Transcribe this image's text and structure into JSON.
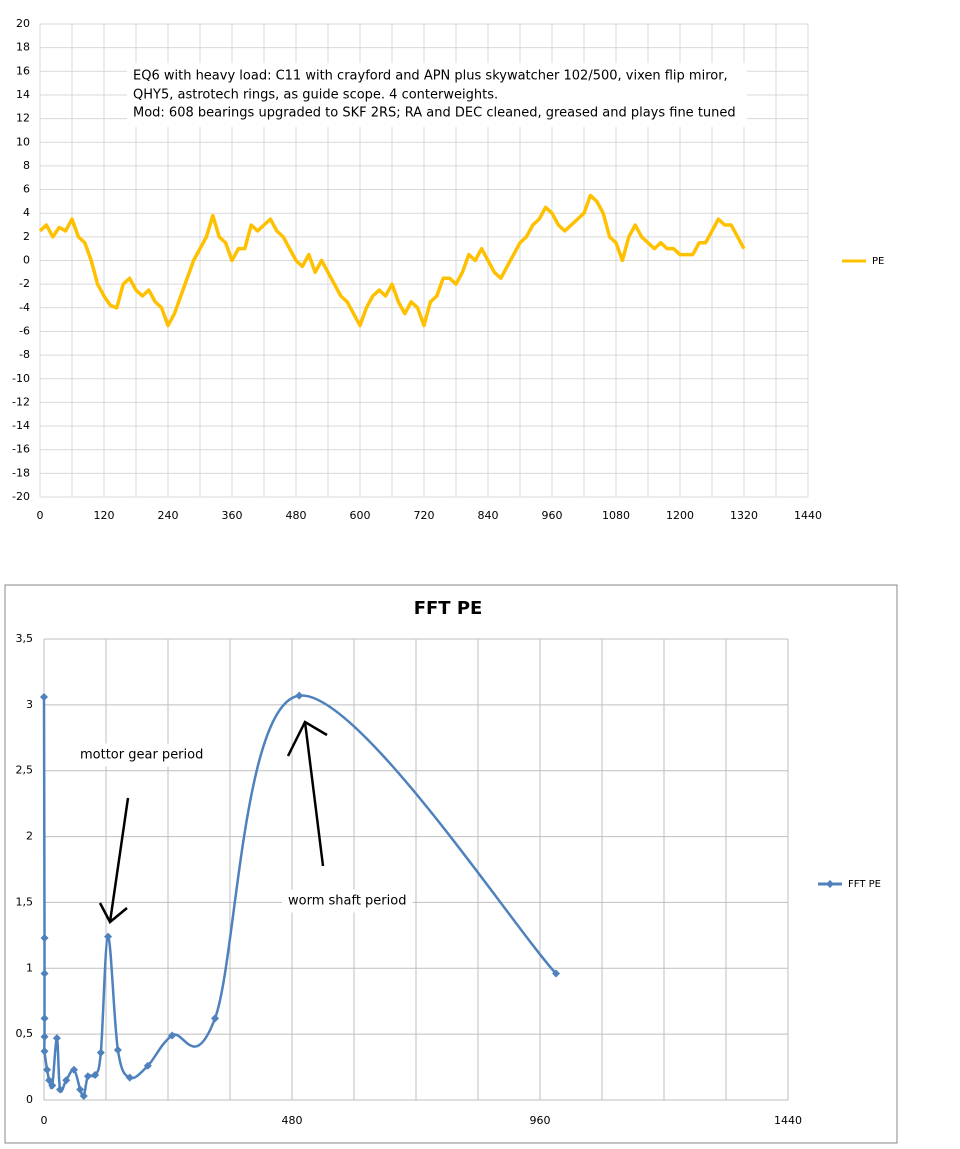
{
  "chart_data": [
    {
      "type": "line",
      "x": [
        0,
        12,
        24,
        36,
        48,
        60,
        72,
        84,
        96,
        108,
        120,
        132,
        144,
        156,
        168,
        180,
        192,
        204,
        216,
        228,
        240,
        252,
        264,
        276,
        288,
        300,
        312,
        324,
        336,
        348,
        360,
        372,
        384,
        396,
        408,
        420,
        432,
        444,
        456,
        468,
        480,
        492,
        504,
        516,
        528,
        540,
        552,
        564,
        576,
        588,
        600,
        612,
        624,
        636,
        648,
        660,
        672,
        684,
        696,
        708,
        720,
        732,
        744,
        756,
        768,
        780,
        792,
        804,
        816,
        828,
        840,
        852,
        864,
        876,
        888,
        900,
        912,
        924,
        936,
        948,
        960,
        972,
        984,
        996,
        1008,
        1020,
        1032,
        1044,
        1056,
        1068,
        1080,
        1092,
        1104,
        1116,
        1128,
        1140,
        1152,
        1164,
        1176,
        1188,
        1200,
        1212,
        1224,
        1236,
        1248,
        1260,
        1272,
        1284,
        1296,
        1308,
        1320
      ],
      "series": [
        {
          "name": "PE",
          "color": "#ffc000",
          "values": [
            2.5,
            3,
            2,
            2.8,
            2.5,
            3.5,
            2,
            1.5,
            0,
            -2,
            -3,
            -3.8,
            -4,
            -2,
            -1.5,
            -2.5,
            -3,
            -2.5,
            -3.5,
            -4,
            -5.5,
            -4.5,
            -3,
            -1.5,
            0,
            1,
            2,
            3.8,
            2,
            1.5,
            0,
            1,
            1,
            3,
            2.5,
            3,
            3.5,
            2.5,
            2,
            1,
            0,
            -0.5,
            0.5,
            -1,
            0,
            -1,
            -2,
            -3,
            -3.5,
            -4.5,
            -5.5,
            -4,
            -3,
            -2.5,
            -3,
            -2,
            -3.5,
            -4.5,
            -3.5,
            -4,
            -5.5,
            -3.5,
            -3,
            -1.5,
            -1.5,
            -2,
            -1,
            0.5,
            0,
            1,
            0,
            -1,
            -1.5,
            -0.5,
            0.5,
            1.5,
            2,
            3,
            3.5,
            4.5,
            4,
            3,
            2.5,
            3,
            3.5,
            4,
            5.5,
            5,
            4,
            2,
            1.5,
            0,
            2,
            3,
            2,
            1.5,
            1,
            1.5,
            1,
            1,
            0.5,
            0.5,
            0.5,
            1.5,
            1.5,
            2.5,
            3.5,
            3,
            3,
            2,
            1
          ]
        }
      ],
      "xlim": [
        0,
        1440
      ],
      "xticks": [
        0,
        120,
        240,
        360,
        480,
        600,
        720,
        840,
        960,
        1080,
        1200,
        1320,
        1440
      ],
      "xgrid": [
        0,
        60,
        120,
        180,
        240,
        300,
        360,
        420,
        480,
        540,
        600,
        660,
        720,
        780,
        840,
        900,
        960,
        1020,
        1080,
        1140,
        1200,
        1260,
        1320,
        1380,
        1440
      ],
      "ylim": [
        -20,
        20
      ],
      "yticks": [
        -20,
        -18,
        -16,
        -14,
        -12,
        -10,
        -8,
        -6,
        -4,
        -2,
        0,
        2,
        4,
        6,
        8,
        10,
        12,
        14,
        16,
        18,
        20
      ],
      "grid": true,
      "legend": "right",
      "annotations": [
        "EQ6 with heavy load: C11 with crayford and APN plus skywatcher 102/500, vixen flip miror,",
        "QHY5, astrotech rings, as guide scope. 4 conterweights.",
        "Mod: 608 bearings upgraded to SKF 2RS; RA and DEC cleaned, greased and plays fine tuned"
      ]
    },
    {
      "type": "line",
      "title": "FFT PE",
      "smooth": true,
      "markers": "diamond",
      "x": [
        0,
        1,
        1,
        1,
        1,
        1,
        6,
        10,
        16,
        25,
        31,
        43,
        58,
        70,
        77,
        85,
        99,
        110,
        124,
        143,
        166,
        201,
        248,
        331,
        494,
        991
      ],
      "series": [
        {
          "name": "FFT PE",
          "color": "#4f81bd",
          "values": [
            3.06,
            1.23,
            0.96,
            0.62,
            0.48,
            0.37,
            0.23,
            0.15,
            0.11,
            0.47,
            0.08,
            0.15,
            0.23,
            0.08,
            0.03,
            0.18,
            0.19,
            0.36,
            1.24,
            0.38,
            0.17,
            0.26,
            0.49,
            0.62,
            3.07,
            0.96
          ]
        }
      ],
      "xlim": [
        0,
        1440
      ],
      "xticks": [
        0,
        480,
        960,
        1440
      ],
      "xgrid": [
        0,
        120,
        240,
        360,
        480,
        600,
        720,
        840,
        960,
        1080,
        1200,
        1320,
        1440
      ],
      "ylim": [
        0,
        3.5
      ],
      "yticks": [
        0,
        {
          "value": 0.5,
          "label": "0,5"
        },
        1,
        {
          "value": 1.5,
          "label": "1,5"
        },
        2,
        {
          "value": 2.5,
          "label": "2,5"
        },
        3,
        {
          "value": 3.5,
          "label": "3,5"
        }
      ],
      "grid": true,
      "legend": "right",
      "annotations": [
        "mottor gear period",
        "worm shaft period"
      ]
    }
  ]
}
